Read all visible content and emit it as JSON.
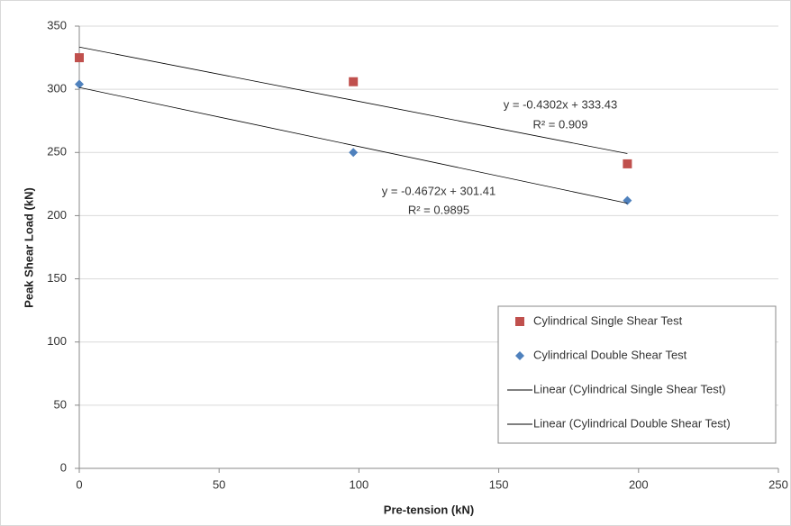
{
  "chart_data": {
    "type": "scatter",
    "x_label": "Pre-tension (kN)",
    "y_label": "Peak Shear Load (kN)",
    "xlim": [
      0,
      250
    ],
    "xticks": [
      0,
      50,
      100,
      150,
      200,
      250
    ],
    "ylim": [
      0,
      350
    ],
    "yticks": [
      0,
      50,
      100,
      150,
      200,
      250,
      300,
      350
    ],
    "grid": true,
    "legend": "right",
    "series": [
      {
        "name": "Cylindrical Single Shear Test",
        "color": "#c0504d",
        "marker": "square",
        "x": [
          0,
          98,
          196
        ],
        "values": [
          325,
          306,
          241
        ]
      },
      {
        "name": "Cylindrical Double Shear Test",
        "color": "#4f81bd",
        "marker": "diamond",
        "x": [
          0,
          98,
          196
        ],
        "values": [
          304,
          250,
          212
        ]
      },
      {
        "name": "Linear (Cylindrical Single Shear Test)",
        "color": "#000000",
        "marker": "line",
        "x": [
          0,
          196
        ],
        "values": [
          333.43,
          249.11
        ]
      },
      {
        "name": "Linear (Cylindrical Double Shear Test)",
        "color": "#000000",
        "marker": "line",
        "x": [
          0,
          196
        ],
        "values": [
          301.41,
          209.84
        ]
      }
    ],
    "annotations": [
      "y = -0.4302x + 333.43",
      "R² = 0.909",
      "y = -0.4672x + 301.41",
      "R² = 0.9895"
    ]
  }
}
